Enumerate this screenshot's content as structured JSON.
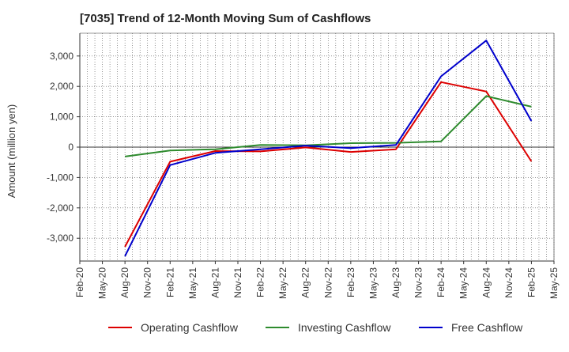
{
  "chart_data": {
    "type": "line",
    "title": "[7035]  Trend of 12-Month Moving Sum of Cashflows",
    "xlabel": "",
    "ylabel": "Amount (million yen)",
    "ylim": [
      -3750,
      3750
    ],
    "yticks": [
      -3000,
      -2000,
      -1000,
      0,
      1000,
      2000,
      3000
    ],
    "ytick_labels": [
      "-3,000",
      "-2,000",
      "-1,000",
      "0",
      "1,000",
      "2,000",
      "3,000"
    ],
    "x": [
      "Feb-20",
      "May-20",
      "Aug-20",
      "Nov-20",
      "Feb-21",
      "May-21",
      "Aug-21",
      "Nov-21",
      "Feb-22",
      "May-22",
      "Aug-22",
      "Nov-22",
      "Feb-23",
      "May-23",
      "Aug-23",
      "Nov-23",
      "Feb-24",
      "May-24",
      "Aug-24",
      "Nov-24",
      "Feb-25",
      "May-25"
    ],
    "grid": true,
    "legend_position": "bottom",
    "series": [
      {
        "name": "Operating Cashflow",
        "color": "#dd0000",
        "values": [
          null,
          null,
          -3280,
          null,
          -480,
          null,
          -130,
          null,
          -140,
          null,
          -10,
          null,
          -160,
          null,
          -70,
          null,
          2140,
          null,
          1830,
          null,
          -470,
          null
        ]
      },
      {
        "name": "Investing Cashflow",
        "color": "#2e8b2e",
        "values": [
          null,
          null,
          -310,
          null,
          -110,
          null,
          -70,
          null,
          70,
          null,
          60,
          null,
          130,
          null,
          140,
          null,
          190,
          null,
          1680,
          null,
          1330,
          null
        ]
      },
      {
        "name": "Free Cashflow",
        "color": "#0000cc",
        "values": [
          null,
          null,
          -3590,
          null,
          -590,
          null,
          -190,
          null,
          -70,
          null,
          50,
          null,
          -30,
          null,
          70,
          null,
          2330,
          null,
          3510,
          null,
          860,
          null
        ]
      }
    ]
  }
}
